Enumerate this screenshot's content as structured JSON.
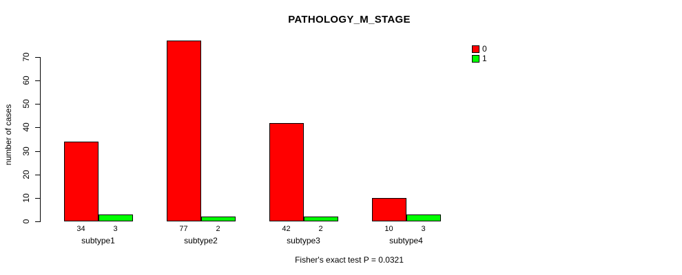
{
  "chart_data": {
    "type": "bar",
    "title": "PATHOLOGY_M_STAGE",
    "ylabel": "number of cases",
    "xlabel": "",
    "categories": [
      "subtype1",
      "subtype2",
      "subtype3",
      "subtype4"
    ],
    "series": [
      {
        "name": "0",
        "color": "#FF0000",
        "values": [
          34,
          77,
          42,
          10
        ]
      },
      {
        "name": "1",
        "color": "#00FF00",
        "values": [
          3,
          2,
          2,
          3
        ]
      }
    ],
    "bar_count_labels": [
      [
        "34",
        "3"
      ],
      [
        "77",
        "2"
      ],
      [
        "42",
        "2"
      ],
      [
        "10",
        "3"
      ]
    ],
    "yticks": [
      0,
      10,
      20,
      30,
      40,
      50,
      60,
      70
    ],
    "ylim": [
      0,
      77
    ],
    "grid": false,
    "legend_position": "top-right",
    "legend_entries": [
      "0",
      "1"
    ],
    "annotation": "Fisher's exact test P = 0.0321",
    "axis_color": "#000000",
    "background_color": "#FFFFFF"
  }
}
